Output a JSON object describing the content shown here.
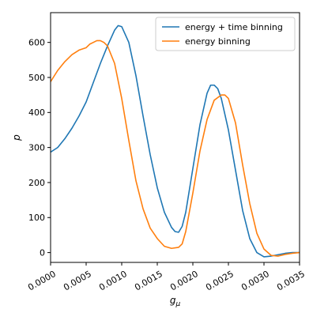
{
  "chart_data": {
    "type": "line",
    "title": "",
    "xlabel": "g_μ",
    "ylabel": "p",
    "xlim": [
      0,
      0.0035
    ],
    "ylim": [
      -28,
      685
    ],
    "grid": false,
    "legend_position": "upper right",
    "x_ticks": [
      0,
      0.0005,
      0.001,
      0.0015,
      0.002,
      0.0025,
      0.003,
      0.0035
    ],
    "x_tick_labels": [
      "0.0000",
      "0.0005",
      "0.0010",
      "0.0015",
      "0.0020",
      "0.0025",
      "0.0030",
      "0.0035"
    ],
    "y_ticks": [
      0,
      100,
      200,
      300,
      400,
      500,
      600
    ],
    "y_tick_labels": [
      "0",
      "100",
      "200",
      "300",
      "400",
      "500",
      "600"
    ],
    "series": [
      {
        "name": "energy + time binning",
        "color": "#1f77b4",
        "x": [
          0,
          0.0001,
          0.0002,
          0.0003,
          0.0004,
          0.0005,
          0.0006,
          0.0007,
          0.0008,
          0.0009,
          0.00095,
          0.001,
          0.0011,
          0.0012,
          0.0013,
          0.0014,
          0.0015,
          0.0016,
          0.0017,
          0.00175,
          0.0018,
          0.00185,
          0.0019,
          0.002,
          0.0021,
          0.0022,
          0.00225,
          0.0023,
          0.00235,
          0.0024,
          0.0025,
          0.0026,
          0.0027,
          0.0028,
          0.0029,
          0.003,
          0.0031,
          0.0032,
          0.0033,
          0.0034,
          0.0035
        ],
        "y": [
          287,
          300,
          325,
          355,
          390,
          430,
          485,
          540,
          590,
          635,
          648,
          645,
          600,
          505,
          390,
          280,
          185,
          115,
          72,
          60,
          58,
          75,
          115,
          240,
          365,
          455,
          478,
          478,
          468,
          440,
          350,
          235,
          120,
          40,
          0,
          -12,
          -10,
          -6,
          -2,
          0,
          0
        ]
      },
      {
        "name": "energy binning",
        "color": "#ff7f0e",
        "x": [
          0,
          0.0001,
          0.0002,
          0.0003,
          0.0004,
          0.0005,
          0.00055,
          0.0006,
          0.00065,
          0.0007,
          0.00075,
          0.0008,
          0.0009,
          0.001,
          0.0011,
          0.0012,
          0.0013,
          0.0014,
          0.0015,
          0.0016,
          0.0017,
          0.0018,
          0.00185,
          0.0019,
          0.002,
          0.0021,
          0.0022,
          0.0023,
          0.0024,
          0.00245,
          0.0025,
          0.0026,
          0.0027,
          0.0028,
          0.0029,
          0.003,
          0.0031,
          0.0032,
          0.0033,
          0.0034,
          0.0035
        ],
        "y": [
          488,
          520,
          545,
          565,
          578,
          585,
          595,
          600,
          605,
          605,
          600,
          590,
          540,
          440,
          320,
          205,
          125,
          70,
          40,
          18,
          12,
          15,
          25,
          60,
          170,
          290,
          380,
          435,
          450,
          450,
          440,
          370,
          250,
          140,
          55,
          10,
          -8,
          -10,
          -5,
          -2,
          0
        ]
      }
    ]
  }
}
